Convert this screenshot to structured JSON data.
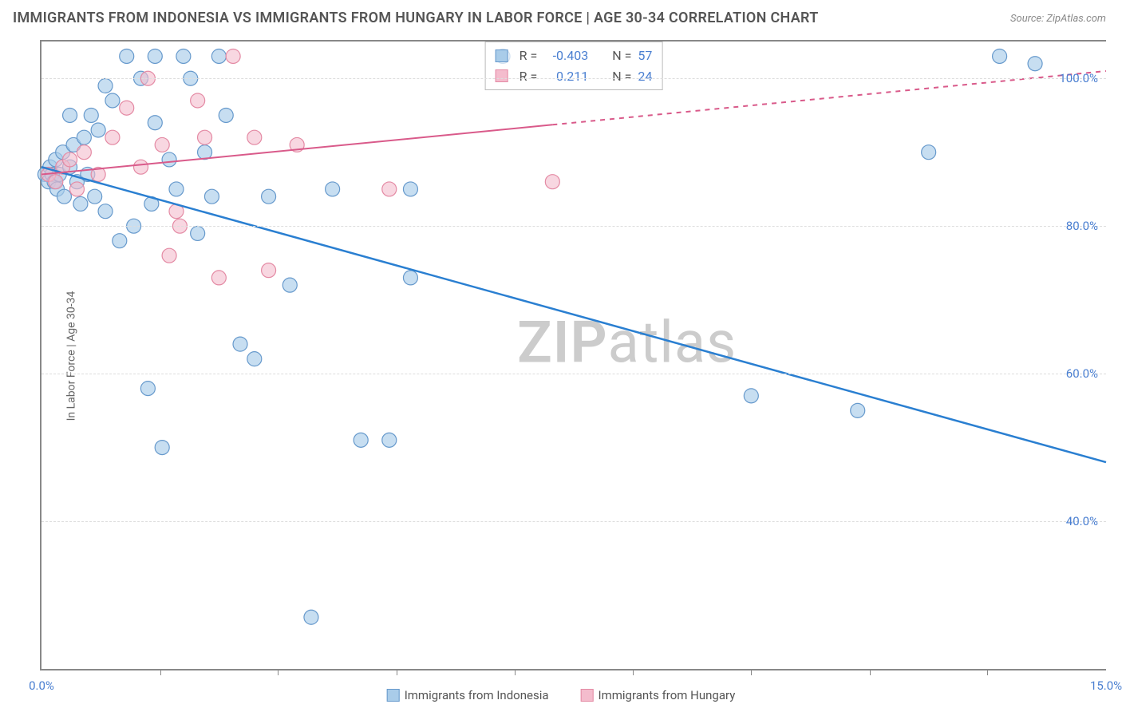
{
  "title": "IMMIGRANTS FROM INDONESIA VS IMMIGRANTS FROM HUNGARY IN LABOR FORCE | AGE 30-34 CORRELATION CHART",
  "source": "Source: ZipAtlas.com",
  "ylabel": "In Labor Force | Age 30-34",
  "watermark_bold": "ZIP",
  "watermark_rest": "atlas",
  "colors": {
    "blue_fill": "#a9cce9",
    "blue_stroke": "#6699cc",
    "pink_fill": "#f4bccd",
    "pink_stroke": "#e48aa4",
    "blue_line": "#2a7fd1",
    "pink_line": "#d95a8a",
    "tick_label": "#4a7fd1",
    "grid": "#dddddd",
    "title_color": "#555555"
  },
  "chart": {
    "type": "scatter",
    "xlim": [
      0,
      15
    ],
    "ylim": [
      20,
      105
    ],
    "yticks": [
      40,
      60,
      80,
      100
    ],
    "ytick_labels": [
      "40.0%",
      "60.0%",
      "80.0%",
      "100.0%"
    ],
    "xticks_minor": [
      1.67,
      3.33,
      5.0,
      6.67,
      8.33,
      10.0,
      11.67,
      13.33
    ],
    "xaxis_labels": [
      {
        "x": 0,
        "text": "0.0%"
      },
      {
        "x": 15,
        "text": "15.0%"
      }
    ],
    "yaxis_right": true,
    "series": [
      {
        "name": "Immigrants from Indonesia",
        "color_fill": "#a9cce9",
        "color_stroke": "#6699cc",
        "marker_r": 9,
        "marker_opacity": 0.65,
        "R": "-0.403",
        "N": "57",
        "trend": {
          "x1": 0,
          "y1": 88,
          "x2": 15,
          "y2": 48,
          "solid_until_x": 15,
          "color": "#2a7fd1",
          "width": 2.5
        },
        "points": [
          [
            0.05,
            87
          ],
          [
            0.1,
            86
          ],
          [
            0.12,
            88
          ],
          [
            0.15,
            87
          ],
          [
            0.18,
            86
          ],
          [
            0.2,
            89
          ],
          [
            0.22,
            85
          ],
          [
            0.25,
            87
          ],
          [
            0.3,
            90
          ],
          [
            0.32,
            84
          ],
          [
            0.4,
            88
          ],
          [
            0.45,
            91
          ],
          [
            0.5,
            86
          ],
          [
            0.55,
            83
          ],
          [
            0.6,
            92
          ],
          [
            0.65,
            87
          ],
          [
            0.7,
            95
          ],
          [
            0.75,
            84
          ],
          [
            0.8,
            93
          ],
          [
            0.9,
            82
          ],
          [
            1.0,
            97
          ],
          [
            1.1,
            78
          ],
          [
            1.2,
            103
          ],
          [
            1.3,
            80
          ],
          [
            1.4,
            100
          ],
          [
            1.5,
            58
          ],
          [
            1.55,
            83
          ],
          [
            1.6,
            103
          ],
          [
            1.7,
            50
          ],
          [
            1.8,
            89
          ],
          [
            1.9,
            85
          ],
          [
            2.0,
            103
          ],
          [
            2.1,
            100
          ],
          [
            2.2,
            79
          ],
          [
            2.3,
            90
          ],
          [
            2.4,
            84
          ],
          [
            2.5,
            103
          ],
          [
            2.6,
            95
          ],
          [
            2.8,
            64
          ],
          [
            3.0,
            62
          ],
          [
            3.2,
            84
          ],
          [
            3.5,
            72
          ],
          [
            3.8,
            27
          ],
          [
            4.1,
            85
          ],
          [
            4.5,
            51
          ],
          [
            4.9,
            51
          ],
          [
            5.2,
            73
          ],
          [
            5.2,
            85
          ],
          [
            6.5,
            103
          ],
          [
            10.0,
            57
          ],
          [
            11.5,
            55
          ],
          [
            12.5,
            90
          ],
          [
            13.5,
            103
          ],
          [
            14.0,
            102
          ],
          [
            0.4,
            95
          ],
          [
            0.9,
            99
          ],
          [
            1.6,
            94
          ]
        ]
      },
      {
        "name": "Immigrants from Hungary",
        "color_fill": "#f4bccd",
        "color_stroke": "#e48aa4",
        "marker_r": 9,
        "marker_opacity": 0.6,
        "R": "0.211",
        "N": "24",
        "trend": {
          "x1": 0,
          "y1": 87,
          "x2": 15,
          "y2": 101,
          "solid_until_x": 7.2,
          "color": "#d95a8a",
          "width": 2
        },
        "points": [
          [
            0.1,
            87
          ],
          [
            0.2,
            86
          ],
          [
            0.3,
            88
          ],
          [
            0.4,
            89
          ],
          [
            0.5,
            85
          ],
          [
            0.6,
            90
          ],
          [
            0.8,
            87
          ],
          [
            1.0,
            92
          ],
          [
            1.2,
            96
          ],
          [
            1.4,
            88
          ],
          [
            1.5,
            100
          ],
          [
            1.7,
            91
          ],
          [
            1.8,
            76
          ],
          [
            1.9,
            82
          ],
          [
            1.95,
            80
          ],
          [
            2.2,
            97
          ],
          [
            2.3,
            92
          ],
          [
            2.5,
            73
          ],
          [
            2.7,
            103
          ],
          [
            3.0,
            92
          ],
          [
            3.2,
            74
          ],
          [
            3.6,
            91
          ],
          [
            4.9,
            85
          ],
          [
            7.2,
            86
          ]
        ]
      }
    ]
  },
  "bottom_legend": [
    {
      "label": "Immigrants from Indonesia",
      "fill": "#a9cce9",
      "stroke": "#6699cc"
    },
    {
      "label": "Immigrants from Hungary",
      "fill": "#f4bccd",
      "stroke": "#e48aa4"
    }
  ],
  "stats_labels": {
    "R": "R =",
    "N": "N ="
  }
}
